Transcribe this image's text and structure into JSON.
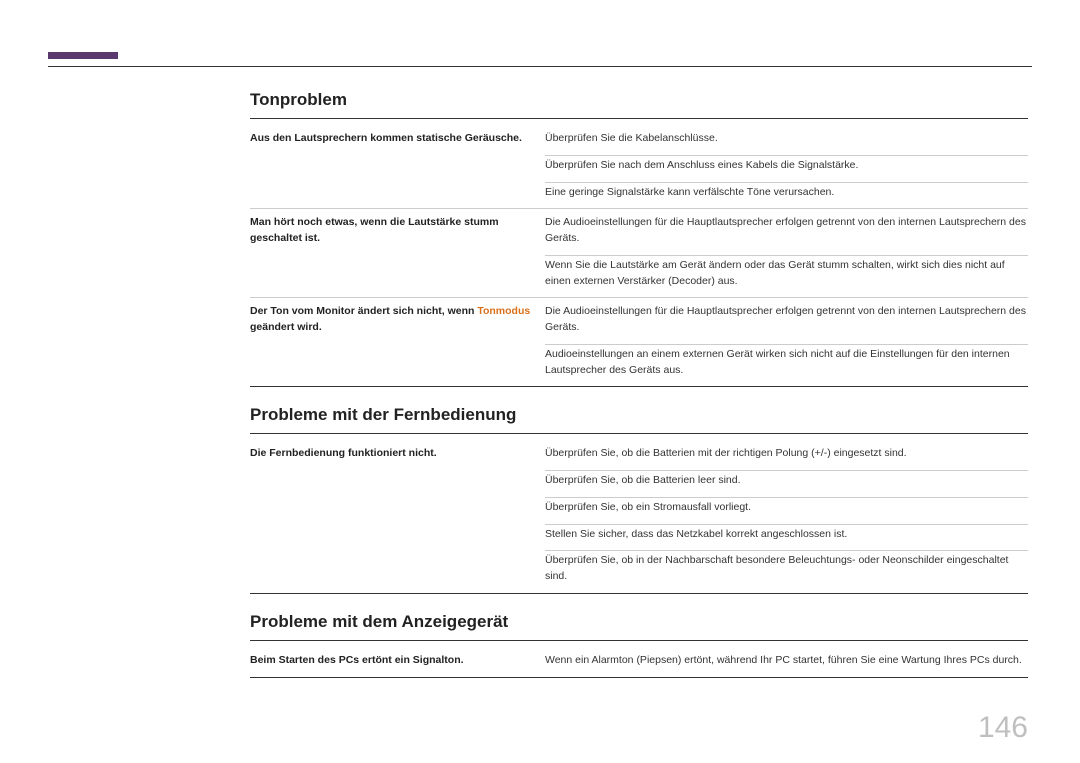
{
  "accent_color": "#5a3a6e",
  "highlight_color": "#d9701a",
  "page_number": "146",
  "sections": [
    {
      "title": "Tonproblem",
      "rows": [
        {
          "issue_parts": [
            {
              "text": "Aus den Lautsprechern kommen statische Geräusche.",
              "hl": false
            }
          ],
          "solutions": [
            [
              "Überprüfen Sie die Kabelanschlüsse."
            ],
            [
              "Überprüfen Sie nach dem Anschluss eines Kabels die Signalstärke."
            ],
            [
              "Eine geringe Signalstärke kann verfälschte Töne verursachen."
            ]
          ]
        },
        {
          "issue_parts": [
            {
              "text": "Man hört noch etwas, wenn die Lautstärke stumm geschaltet ist.",
              "hl": false
            }
          ],
          "solutions": [
            [
              "Die Audioeinstellungen für die Hauptlautsprecher erfolgen getrennt von den internen Lautsprechern des Geräts."
            ],
            [
              "Wenn Sie die Lautstärke am Gerät ändern oder das Gerät stumm schalten, wirkt sich dies nicht auf einen externen Verstärker (Decoder) aus."
            ]
          ]
        },
        {
          "issue_parts": [
            {
              "text": "Der Ton vom Monitor ändert sich nicht, wenn ",
              "hl": false
            },
            {
              "text": "Tonmodus",
              "hl": true
            },
            {
              "text": " geändert wird.",
              "hl": false
            }
          ],
          "solutions": [
            [
              "Die Audioeinstellungen für die Hauptlautsprecher erfolgen getrennt von den internen Lautsprechern des Geräts."
            ],
            [
              "Audioeinstellungen an einem externen Gerät wirken sich nicht auf die Einstellungen für den internen Lautsprecher des Geräts aus."
            ]
          ]
        }
      ]
    },
    {
      "title": "Probleme mit der Fernbedienung",
      "rows": [
        {
          "issue_parts": [
            {
              "text": "Die Fernbedienung funktioniert nicht.",
              "hl": false
            }
          ],
          "solutions": [
            [
              "Überprüfen Sie, ob die Batterien mit der richtigen Polung (+/-) eingesetzt sind."
            ],
            [
              "Überprüfen Sie, ob die Batterien leer sind."
            ],
            [
              "Überprüfen Sie, ob ein Stromausfall vorliegt."
            ],
            [
              "Stellen Sie sicher, dass das Netzkabel korrekt angeschlossen ist."
            ],
            [
              "Überprüfen Sie, ob in der Nachbarschaft besondere Beleuchtungs- oder Neonschilder eingeschaltet sind."
            ]
          ]
        }
      ]
    },
    {
      "title": "Probleme mit dem Anzeigegerät",
      "rows": [
        {
          "issue_parts": [
            {
              "text": "Beim Starten des PCs ertönt ein Signalton.",
              "hl": false
            }
          ],
          "solutions": [
            [
              "Wenn ein Alarmton (Piepsen) ertönt, während Ihr PC startet, führen Sie eine Wartung Ihres PCs durch."
            ]
          ]
        }
      ]
    }
  ]
}
